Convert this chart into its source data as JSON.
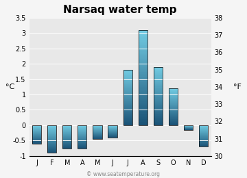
{
  "title": "Narsaq water temp",
  "months": [
    "J",
    "F",
    "M",
    "A",
    "M",
    "J",
    "J",
    "A",
    "S",
    "O",
    "N",
    "D"
  ],
  "values_c": [
    -0.6,
    -0.9,
    -0.75,
    -0.75,
    -0.45,
    -0.4,
    1.8,
    3.1,
    1.9,
    1.2,
    -0.15,
    -0.7
  ],
  "ylim_c": [
    -1.0,
    3.5
  ],
  "ylim_f": [
    30,
    38
  ],
  "yticks_c": [
    -1.0,
    -0.5,
    0.0,
    0.5,
    1.0,
    1.5,
    2.0,
    2.5,
    3.0,
    3.5
  ],
  "yticks_f": [
    30,
    31,
    32,
    33,
    34,
    35,
    36,
    37,
    38
  ],
  "ylabel_left": "°C",
  "ylabel_right": "°F",
  "color_top": "#72cce3",
  "color_bottom": "#1a5276",
  "fig_bg_color": "#f5f5f5",
  "plot_bg_color": "#e8e8e8",
  "watermark": "© www.seatemperature.org",
  "title_fontsize": 11,
  "tick_fontsize": 7,
  "label_fontsize": 8,
  "watermark_fontsize": 5.5
}
